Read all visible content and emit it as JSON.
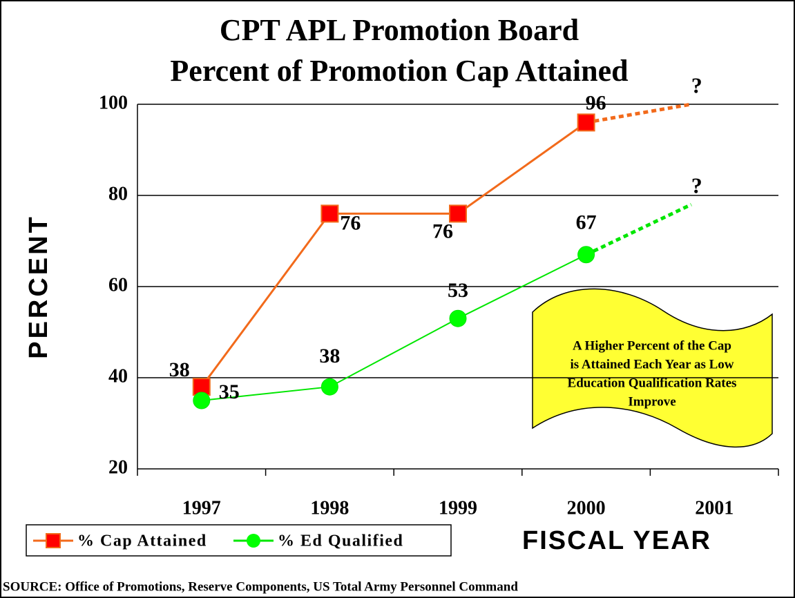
{
  "chart_data": {
    "type": "line",
    "title": [
      "CPT APL Promotion Board",
      "Percent of Promotion Cap Attained"
    ],
    "y_label": "PERCENT",
    "x_label": "FISCAL YEAR",
    "categories": [
      "1997",
      "1998",
      "1999",
      "2000",
      "2001"
    ],
    "series": [
      {
        "name": "% Cap Attained",
        "color": "#f26a1b",
        "marker": "square",
        "marker_color": "#ff0000",
        "values": [
          38,
          76,
          76,
          96,
          null
        ],
        "projection": 100,
        "projection_label": "?"
      },
      {
        "name": "% Ed Qualified",
        "color": "#00e600",
        "marker": "circle",
        "marker_color": "#00ff00",
        "values": [
          35,
          38,
          53,
          67,
          null
        ],
        "projection": 78,
        "projection_label": "?"
      }
    ],
    "ylim": [
      20,
      100
    ],
    "yticks": [
      20,
      40,
      60,
      80,
      100
    ],
    "grid": true,
    "legend": "bottom-left",
    "annotation": [
      "A Higher Percent of the Cap",
      "is Attained Each Year as Low",
      "Education Qualification Rates",
      "Improve"
    ],
    "source": "SOURCE: Office of Promotions, Reserve Components, US Total  Army Personnel Command"
  }
}
